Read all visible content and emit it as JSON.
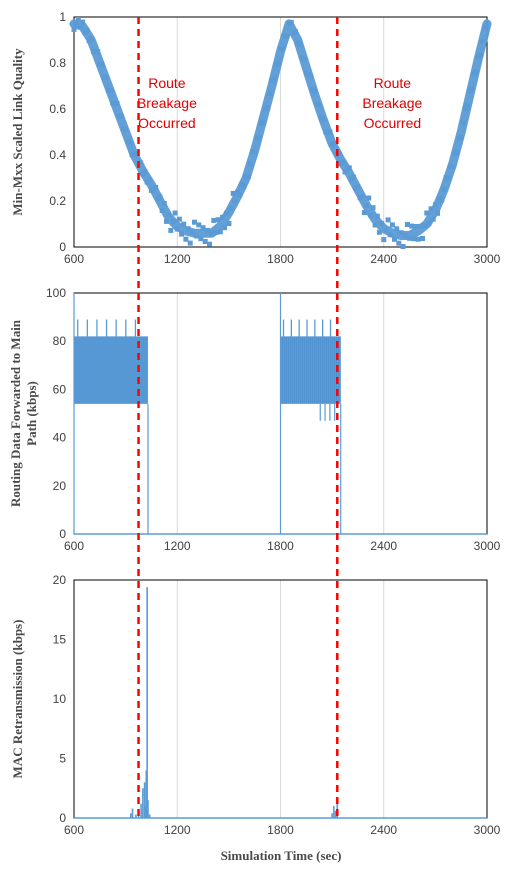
{
  "chart_data": [
    {
      "type": "scatter",
      "ylabel": "Min-Mxx Scaled Link Quality",
      "xlabel": "",
      "xlim": [
        600,
        3000
      ],
      "ylim": [
        0,
        1
      ],
      "xticks": [
        "600",
        "1200",
        "1800",
        "2400",
        "3000"
      ],
      "yticks": [
        "0",
        "0.2",
        "0.4",
        "0.6",
        "0.8",
        "1"
      ],
      "grid": "vertical",
      "series_color": "#5b9bd5",
      "series": [
        {
          "x": [
            600,
            650,
            700,
            750,
            800,
            850,
            900,
            950,
            1000,
            1050,
            1100,
            1150,
            1200,
            1250,
            1300,
            1350,
            1400,
            1450,
            1500,
            1550,
            1600,
            1650,
            1700,
            1750,
            1800,
            1850,
            1900,
            1950,
            2000,
            2050,
            2100,
            2150,
            2200,
            2250,
            2300,
            2350,
            2400,
            2450,
            2500,
            2550,
            2600,
            2650,
            2700,
            2750,
            2800,
            2850,
            2900,
            2950,
            3000
          ],
          "y": [
            0.97,
            0.96,
            0.9,
            0.8,
            0.7,
            0.6,
            0.5,
            0.4,
            0.33,
            0.27,
            0.2,
            0.13,
            0.09,
            0.07,
            0.06,
            0.06,
            0.06,
            0.09,
            0.15,
            0.22,
            0.3,
            0.42,
            0.56,
            0.7,
            0.85,
            0.97,
            0.9,
            0.78,
            0.66,
            0.55,
            0.45,
            0.38,
            0.32,
            0.25,
            0.18,
            0.12,
            0.08,
            0.06,
            0.05,
            0.05,
            0.07,
            0.1,
            0.16,
            0.25,
            0.36,
            0.5,
            0.66,
            0.82,
            0.97
          ]
        }
      ],
      "annotations": [
        {
          "lines": [
            "Route",
            "Breakage",
            "Occurred"
          ],
          "x": 1140
        },
        {
          "lines": [
            "Route",
            "Breakage",
            "Occurred"
          ],
          "x": 2450
        }
      ]
    },
    {
      "type": "line",
      "ylabel": "Routing Data Forwarded to Main Path (kbps)",
      "ylabel_lines": [
        "Routing Data Forwarded to Main",
        "Path (kbps)"
      ],
      "xlabel": "",
      "xlim": [
        600,
        3000
      ],
      "ylim": [
        0,
        100
      ],
      "xticks": [
        "600",
        "1200",
        "1800",
        "2400",
        "3000"
      ],
      "yticks": [
        "0",
        "20",
        "40",
        "60",
        "80",
        "100"
      ],
      "grid": "vertical",
      "series_color": "#5b9bd5",
      "bands": [
        {
          "x_start": 600,
          "x_end": 1030,
          "low": 54,
          "high": 82,
          "spike_high": 89,
          "peak": 100
        },
        {
          "x_start": 1800,
          "x_end": 2150,
          "low": 54,
          "high": 82,
          "spike_high": 89,
          "dip_low": 47,
          "peak": 100
        }
      ]
    },
    {
      "type": "line",
      "ylabel": "MAC Retransmission (kbps)",
      "xlabel": "Simulation Time (sec)",
      "xlim": [
        600,
        3000
      ],
      "ylim": [
        0,
        20
      ],
      "xticks": [
        "600",
        "1200",
        "1800",
        "2400",
        "3000"
      ],
      "yticks": [
        "0",
        "5",
        "10",
        "15",
        "20"
      ],
      "grid": "vertical",
      "series_color": "#5b9bd5",
      "series": [
        {
          "x": [
            930,
            940,
            960,
            975,
            990,
            1000,
            1010,
            1015,
            1020,
            1025,
            1030,
            1040,
            2100,
            2110,
            2120,
            2130
          ],
          "y": [
            0.4,
            0.8,
            0.3,
            0.7,
            1.2,
            2.5,
            3.0,
            1.0,
            4.0,
            19.4,
            1.5,
            0.3,
            0.4,
            1.0,
            0.6,
            1.5
          ]
        }
      ]
    }
  ],
  "vertical_markers": {
    "x": [
      975,
      2130
    ],
    "color": "#ff0000",
    "style": "dashed"
  }
}
